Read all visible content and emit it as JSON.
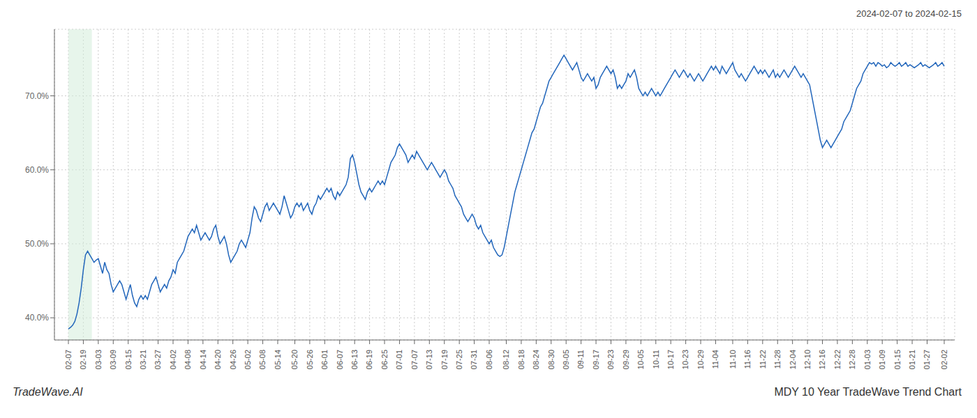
{
  "chart_data": {
    "type": "line",
    "subtitle": "2024-02-07 to 2024-02-15",
    "annotations": [
      "TradeWave.AI",
      "MDY 10 Year TradeWave Trend Chart"
    ],
    "color": "#2266bb",
    "grid": true,
    "ylim": [
      37.0,
      79.0
    ],
    "yticks": [
      {
        "value": 40.0,
        "label": "40.0%"
      },
      {
        "value": 50.0,
        "label": "50.0%"
      },
      {
        "value": 60.0,
        "label": "60.0%"
      },
      {
        "value": 70.0,
        "label": "70.0%"
      }
    ],
    "highlight": {
      "from": 0,
      "to": 11,
      "color": "#d4edda"
    },
    "categories": [
      "02-07",
      null,
      null,
      null,
      null,
      null,
      null,
      "02-19",
      null,
      null,
      null,
      null,
      null,
      null,
      "03-03",
      null,
      null,
      null,
      null,
      null,
      null,
      "03-09",
      null,
      null,
      null,
      null,
      null,
      null,
      "03-15",
      null,
      null,
      null,
      null,
      null,
      null,
      "03-21",
      null,
      null,
      null,
      null,
      null,
      null,
      "03-27",
      null,
      null,
      null,
      null,
      null,
      null,
      "04-02",
      null,
      null,
      null,
      null,
      null,
      null,
      "04-08",
      null,
      null,
      null,
      null,
      null,
      null,
      "04-14",
      null,
      null,
      null,
      null,
      null,
      null,
      "04-20",
      null,
      null,
      null,
      null,
      null,
      null,
      "04-26",
      null,
      null,
      null,
      null,
      null,
      null,
      "05-02",
      null,
      null,
      null,
      null,
      null,
      null,
      "05-08",
      null,
      null,
      null,
      null,
      null,
      null,
      "05-14",
      null,
      null,
      null,
      null,
      null,
      null,
      null,
      "05-20",
      null,
      null,
      null,
      null,
      null,
      null,
      "05-26",
      null,
      null,
      null,
      null,
      null,
      null,
      "06-01",
      null,
      null,
      null,
      null,
      null,
      null,
      "06-07",
      null,
      null,
      null,
      null,
      null,
      null,
      "06-13",
      null,
      null,
      null,
      null,
      null,
      null,
      "06-19",
      null,
      null,
      null,
      null,
      null,
      null,
      "06-25",
      null,
      null,
      null,
      null,
      null,
      null,
      "07-01",
      null,
      null,
      null,
      null,
      null,
      null,
      "07-07",
      null,
      null,
      null,
      null,
      null,
      null,
      "07-13",
      null,
      null,
      null,
      null,
      null,
      null,
      "07-19",
      null,
      null,
      null,
      null,
      null,
      null,
      "07-25",
      null,
      null,
      null,
      null,
      null,
      null,
      "07-31",
      null,
      null,
      null,
      null,
      null,
      null,
      "08-06",
      null,
      null,
      null,
      null,
      null,
      null,
      null,
      "08-12",
      null,
      null,
      null,
      null,
      null,
      null,
      "08-18",
      null,
      null,
      null,
      null,
      null,
      null,
      "08-24",
      null,
      null,
      null,
      null,
      null,
      null,
      "08-30",
      null,
      null,
      null,
      null,
      null,
      null,
      "09-05",
      null,
      null,
      null,
      null,
      null,
      null,
      "09-11",
      null,
      null,
      null,
      null,
      null,
      null,
      "09-17",
      null,
      null,
      null,
      null,
      null,
      null,
      "09-23",
      null,
      null,
      null,
      null,
      null,
      null,
      "09-29",
      null,
      null,
      null,
      null,
      null,
      null,
      "10-05",
      null,
      null,
      null,
      null,
      null,
      null,
      "10-11",
      null,
      null,
      null,
      null,
      null,
      null,
      "10-17",
      null,
      null,
      null,
      null,
      null,
      null,
      "10-23",
      null,
      null,
      null,
      null,
      null,
      null,
      "10-29",
      null,
      null,
      null,
      null,
      null,
      null,
      "11-04",
      null,
      null,
      null,
      null,
      null,
      null,
      null,
      "11-10",
      null,
      null,
      null,
      null,
      null,
      null,
      "11-16",
      null,
      null,
      null,
      null,
      null,
      null,
      "11-22",
      null,
      null,
      null,
      null,
      null,
      null,
      "11-28",
      null,
      null,
      null,
      null,
      null,
      null,
      "12-04",
      null,
      null,
      null,
      null,
      null,
      null,
      "12-10",
      null,
      null,
      null,
      null,
      null,
      null,
      "12-16",
      null,
      null,
      null,
      null,
      null,
      null,
      "12-22",
      null,
      null,
      null,
      null,
      null,
      null,
      "12-28",
      null,
      null,
      null,
      null,
      null,
      null,
      "01-03",
      null,
      null,
      null,
      null,
      null,
      null,
      "01-09",
      null,
      null,
      null,
      null,
      null,
      null,
      "01-15",
      null,
      null,
      null,
      null,
      null,
      null,
      "01-21",
      null,
      null,
      null,
      null,
      null,
      null,
      "01-27",
      null,
      null,
      null,
      null,
      null,
      null,
      null,
      "02-02"
    ],
    "values": [
      38.5,
      38.7,
      39.0,
      39.5,
      40.5,
      42.0,
      44.0,
      46.5,
      48.5,
      49.0,
      48.5,
      48.0,
      47.5,
      47.8,
      48.0,
      47.0,
      46.0,
      47.5,
      46.5,
      46.0,
      44.5,
      43.5,
      44.0,
      44.5,
      45.0,
      44.5,
      43.5,
      42.5,
      43.5,
      44.5,
      43.0,
      42.0,
      41.5,
      42.5,
      43.0,
      42.5,
      43.0,
      42.5,
      43.5,
      44.5,
      45.0,
      45.5,
      44.5,
      43.5,
      44.0,
      44.5,
      44.0,
      45.0,
      45.5,
      46.5,
      46.0,
      47.5,
      48.0,
      48.5,
      49.0,
      50.0,
      51.0,
      51.5,
      52.0,
      51.5,
      52.5,
      51.5,
      50.5,
      51.0,
      51.5,
      51.0,
      50.5,
      51.0,
      52.0,
      52.5,
      51.0,
      50.0,
      50.5,
      51.0,
      50.0,
      48.5,
      47.5,
      48.0,
      48.5,
      49.0,
      50.0,
      50.5,
      50.0,
      49.5,
      50.5,
      51.5,
      53.5,
      55.0,
      54.5,
      53.5,
      53.0,
      54.0,
      55.0,
      55.5,
      54.5,
      55.0,
      55.5,
      55.0,
      54.5,
      54.0,
      55.0,
      56.5,
      55.5,
      54.5,
      53.5,
      54.0,
      55.0,
      55.5,
      55.0,
      55.5,
      54.5,
      55.0,
      55.5,
      54.5,
      54.0,
      55.0,
      55.5,
      56.5,
      56.0,
      56.5,
      57.0,
      57.5,
      57.0,
      57.5,
      56.5,
      56.0,
      57.0,
      56.5,
      57.0,
      57.5,
      58.0,
      59.0,
      61.5,
      62.0,
      61.0,
      59.5,
      58.0,
      57.0,
      56.5,
      56.0,
      57.0,
      57.5,
      57.0,
      57.5,
      58.0,
      58.5,
      58.0,
      58.5,
      58.0,
      59.0,
      60.0,
      61.0,
      61.5,
      62.0,
      63.0,
      63.5,
      63.0,
      62.5,
      62.0,
      61.0,
      61.5,
      62.0,
      61.5,
      62.5,
      62.0,
      61.5,
      61.0,
      60.5,
      60.0,
      60.5,
      61.0,
      60.5,
      60.0,
      59.5,
      59.0,
      59.5,
      60.0,
      59.5,
      58.5,
      58.0,
      57.5,
      56.5,
      56.0,
      55.5,
      55.0,
      54.0,
      53.5,
      53.0,
      53.5,
      54.0,
      53.5,
      52.5,
      52.0,
      52.5,
      51.5,
      51.0,
      50.5,
      50.0,
      50.5,
      49.5,
      49.0,
      48.5,
      48.3,
      48.5,
      49.5,
      51.0,
      52.5,
      54.0,
      55.5,
      57.0,
      58.0,
      59.0,
      60.0,
      61.0,
      62.0,
      63.0,
      64.0,
      65.0,
      65.5,
      66.5,
      67.5,
      68.5,
      69.0,
      70.0,
      71.0,
      72.0,
      72.5,
      73.0,
      73.5,
      74.0,
      74.5,
      75.0,
      75.5,
      75.0,
      74.5,
      74.0,
      73.5,
      74.0,
      74.5,
      73.5,
      72.5,
      72.0,
      72.5,
      73.0,
      72.5,
      72.0,
      72.5,
      71.0,
      71.5,
      72.5,
      73.0,
      73.5,
      74.0,
      73.5,
      73.0,
      73.5,
      72.5,
      71.0,
      71.5,
      71.0,
      71.5,
      72.0,
      73.0,
      72.5,
      73.0,
      73.5,
      72.5,
      71.0,
      70.5,
      70.0,
      70.5,
      70.0,
      70.5,
      71.0,
      70.5,
      70.0,
      70.5,
      70.0,
      70.5,
      71.0,
      71.5,
      72.0,
      72.5,
      73.0,
      73.5,
      73.0,
      72.5,
      73.0,
      73.5,
      73.0,
      72.5,
      73.0,
      72.5,
      72.0,
      72.5,
      73.0,
      72.5,
      72.0,
      72.5,
      73.0,
      73.5,
      74.0,
      73.5,
      74.0,
      73.5,
      73.0,
      74.0,
      73.5,
      73.0,
      73.5,
      74.0,
      74.5,
      73.5,
      73.0,
      72.5,
      73.0,
      72.5,
      72.0,
      72.5,
      73.0,
      73.5,
      74.0,
      73.5,
      73.0,
      73.5,
      73.0,
      73.5,
      73.0,
      72.5,
      73.0,
      73.5,
      72.5,
      73.0,
      72.5,
      73.0,
      73.5,
      73.0,
      72.5,
      73.0,
      73.5,
      74.0,
      73.5,
      73.0,
      72.5,
      73.0,
      72.5,
      72.0,
      71.5,
      70.0,
      68.5,
      67.0,
      65.5,
      64.0,
      63.0,
      63.5,
      64.0,
      63.5,
      63.0,
      63.5,
      64.0,
      64.5,
      65.0,
      65.5,
      66.5,
      67.0,
      67.5,
      68.0,
      69.0,
      70.0,
      71.0,
      71.5,
      72.0,
      73.0,
      73.5,
      74.0,
      74.5,
      74.3,
      74.5,
      74.0,
      74.5,
      74.3,
      74.0,
      74.2,
      73.8,
      74.0,
      74.5,
      74.2,
      74.0,
      74.2,
      74.5,
      74.0,
      74.2,
      74.5,
      74.0,
      74.2,
      74.0,
      73.8,
      74.0,
      74.2,
      74.5,
      74.0,
      74.2,
      74.0,
      73.8,
      74.0,
      74.2,
      74.5,
      74.0,
      74.2,
      74.5,
      74.0
    ]
  }
}
